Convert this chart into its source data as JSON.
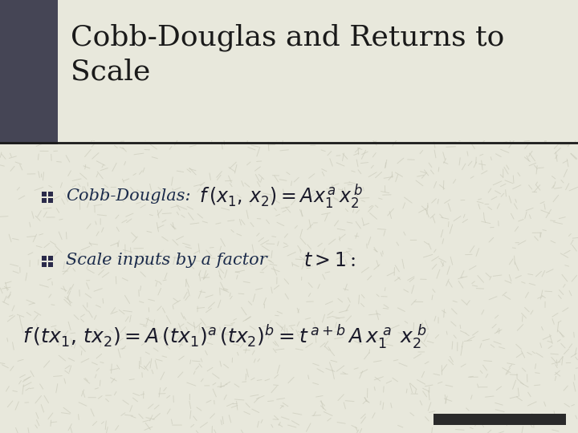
{
  "bg_color": "#e8e8dc",
  "title_area_bg": "#e8e8dc",
  "title": "Cobb-Douglas and Returns to\nScale",
  "title_bar_color": "#454555",
  "title_color": "#1a1a1a",
  "title_fontsize": 26,
  "bullet_color": "#2a2a4a",
  "text_color": "#1a2a4a",
  "formula_color": "#1a1a2a",
  "separator_color": "#1a1a1a",
  "footer_bar_color": "#2a2a2a",
  "bg_pattern_color": "#d0d0c0",
  "watermark_alpha": 0.5
}
